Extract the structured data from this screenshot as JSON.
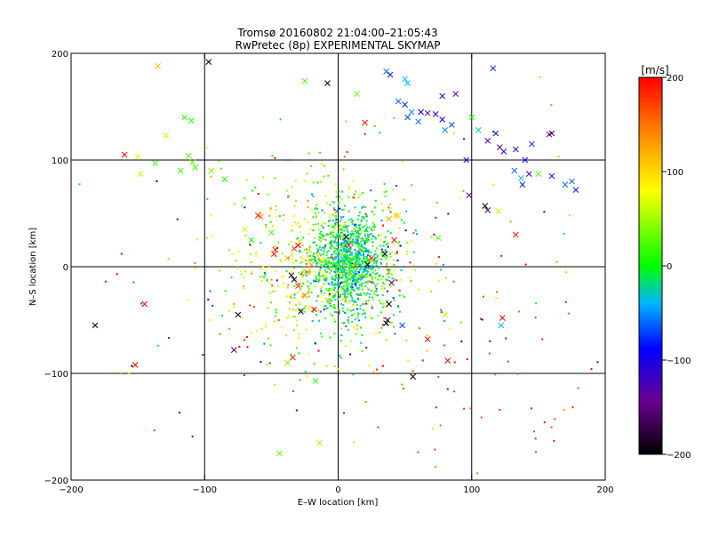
{
  "chart_data": {
    "type": "scatter",
    "title": "Tromsø 20160802 21:04:00–21:05:43",
    "subtitle": "RwPretec (8p) EXPERIMENTAL SKYMAP",
    "xlabel": "E–W location [km]",
    "ylabel": "N–S location [km]",
    "xlim": [
      -200,
      200
    ],
    "ylim": [
      -200,
      200
    ],
    "x_ticks": [
      "−200",
      "−100",
      "0",
      "100",
      "200"
    ],
    "y_ticks": [
      "−200",
      "−100",
      "0",
      "100",
      "200"
    ],
    "grid": true,
    "colorbar": {
      "label": "[m/s]",
      "range": [
        -200,
        200
      ],
      "ticks": [
        "200",
        "100",
        "0",
        "−100",
        "−200"
      ],
      "colormap": "rainbow (black-purple-blue-cyan-green-yellow-red)"
    },
    "crosses": [
      {
        "x": -135,
        "y": 188,
        "v": 110
      },
      {
        "x": -97,
        "y": 192,
        "v": -200
      },
      {
        "x": -25,
        "y": 174,
        "v": 20
      },
      {
        "x": -8,
        "y": 172,
        "v": -200
      },
      {
        "x": 14,
        "y": 162,
        "v": 30
      },
      {
        "x": 20,
        "y": 135,
        "v": 190
      },
      {
        "x": -160,
        "y": 105,
        "v": 200
      },
      {
        "x": -150,
        "y": 103,
        "v": 70
      },
      {
        "x": -148,
        "y": 87,
        "v": 60
      },
      {
        "x": -137,
        "y": 97,
        "v": 20
      },
      {
        "x": -129,
        "y": 123,
        "v": 60
      },
      {
        "x": -118,
        "y": 90,
        "v": 20
      },
      {
        "x": -115,
        "y": 140,
        "v": 20
      },
      {
        "x": -110,
        "y": 137,
        "v": 10
      },
      {
        "x": -112,
        "y": 104,
        "v": 20
      },
      {
        "x": -109,
        "y": 98,
        "v": 30
      },
      {
        "x": -107,
        "y": 93,
        "v": 20
      },
      {
        "x": -95,
        "y": 90,
        "v": 40
      },
      {
        "x": -85,
        "y": 82,
        "v": 10
      },
      {
        "x": 36,
        "y": 183,
        "v": -60
      },
      {
        "x": 39,
        "y": 180,
        "v": -80
      },
      {
        "x": 50,
        "y": 176,
        "v": -40
      },
      {
        "x": 52,
        "y": 172,
        "v": -40
      },
      {
        "x": 45,
        "y": 155,
        "v": -60
      },
      {
        "x": 50,
        "y": 152,
        "v": -80
      },
      {
        "x": 52,
        "y": 140,
        "v": -70
      },
      {
        "x": 55,
        "y": 145,
        "v": -50
      },
      {
        "x": 60,
        "y": 136,
        "v": -60
      },
      {
        "x": 62,
        "y": 145,
        "v": -90
      },
      {
        "x": 67,
        "y": 144,
        "v": -130
      },
      {
        "x": 73,
        "y": 143,
        "v": -110
      },
      {
        "x": 78,
        "y": 138,
        "v": -90
      },
      {
        "x": 80,
        "y": 128,
        "v": -50
      },
      {
        "x": 85,
        "y": 133,
        "v": -70
      },
      {
        "x": 88,
        "y": 162,
        "v": -140
      },
      {
        "x": 78,
        "y": 160,
        "v": -110
      },
      {
        "x": 100,
        "y": 140,
        "v": 10
      },
      {
        "x": 105,
        "y": 128,
        "v": -20
      },
      {
        "x": 116,
        "y": 186,
        "v": -80
      },
      {
        "x": 112,
        "y": 118,
        "v": -120
      },
      {
        "x": 118,
        "y": 125,
        "v": -100
      },
      {
        "x": 121,
        "y": 112,
        "v": -140
      },
      {
        "x": 124,
        "y": 108,
        "v": -110
      },
      {
        "x": 133,
        "y": 110,
        "v": -120
      },
      {
        "x": 140,
        "y": 100,
        "v": -90
      },
      {
        "x": 145,
        "y": 115,
        "v": -70
      },
      {
        "x": 132,
        "y": 90,
        "v": -60
      },
      {
        "x": 137,
        "y": 83,
        "v": -30
      },
      {
        "x": 138,
        "y": 77,
        "v": -80
      },
      {
        "x": 143,
        "y": 87,
        "v": -120
      },
      {
        "x": 150,
        "y": 87,
        "v": 30
      },
      {
        "x": 160,
        "y": 125,
        "v": -160
      },
      {
        "x": 158,
        "y": 124,
        "v": -150
      },
      {
        "x": 160,
        "y": 85,
        "v": -80
      },
      {
        "x": 170,
        "y": 77,
        "v": -60
      },
      {
        "x": 175,
        "y": 80,
        "v": -60
      },
      {
        "x": 178,
        "y": 72,
        "v": -80
      },
      {
        "x": 98,
        "y": 67,
        "v": -130
      },
      {
        "x": 110,
        "y": 57,
        "v": -200
      },
      {
        "x": 120,
        "y": 52,
        "v": 60
      },
      {
        "x": 96,
        "y": 100,
        "v": -120
      },
      {
        "x": 133,
        "y": 30,
        "v": 190
      },
      {
        "x": 112,
        "y": 53,
        "v": -170
      },
      {
        "x": 75,
        "y": 27,
        "v": 30
      },
      {
        "x": -60,
        "y": 48,
        "v": 190
      },
      {
        "x": -58,
        "y": 47,
        "v": 140
      },
      {
        "x": -70,
        "y": 35,
        "v": 60
      },
      {
        "x": -65,
        "y": 25,
        "v": 10
      },
      {
        "x": -50,
        "y": 32,
        "v": 20
      },
      {
        "x": -48,
        "y": 12,
        "v": 190
      },
      {
        "x": -47,
        "y": 16,
        "v": 200
      },
      {
        "x": -33,
        "y": 17,
        "v": 170
      },
      {
        "x": -38,
        "y": 8,
        "v": 120
      },
      {
        "x": -30,
        "y": 20,
        "v": 200
      },
      {
        "x": -30,
        "y": -18,
        "v": 180
      },
      {
        "x": -25,
        "y": -27,
        "v": 140
      },
      {
        "x": -28,
        "y": -42,
        "v": -180
      },
      {
        "x": -18,
        "y": -40,
        "v": 200
      },
      {
        "x": -15,
        "y": 10,
        "v": 100
      },
      {
        "x": -12,
        "y": 5,
        "v": 60
      },
      {
        "x": -20,
        "y": 2,
        "v": 130
      },
      {
        "x": -23,
        "y": -5,
        "v": 150
      },
      {
        "x": -33,
        "y": -12,
        "v": -200
      },
      {
        "x": -35,
        "y": -8,
        "v": -180
      },
      {
        "x": 6,
        "y": 28,
        "v": -200
      },
      {
        "x": 8,
        "y": 20,
        "v": 190
      },
      {
        "x": 15,
        "y": 10,
        "v": -10
      },
      {
        "x": 22,
        "y": 2,
        "v": -200
      },
      {
        "x": 25,
        "y": 8,
        "v": 190
      },
      {
        "x": 35,
        "y": 12,
        "v": -200
      },
      {
        "x": 38,
        "y": -35,
        "v": -200
      },
      {
        "x": 37,
        "y": -50,
        "v": -180
      },
      {
        "x": 36,
        "y": -53,
        "v": -200
      },
      {
        "x": 38,
        "y": 45,
        "v": 120
      },
      {
        "x": 43,
        "y": 48,
        "v": 110
      },
      {
        "x": 45,
        "y": 48,
        "v": 100
      },
      {
        "x": 38,
        "y": -5,
        "v": 20
      },
      {
        "x": 40,
        "y": -15,
        "v": -160
      },
      {
        "x": 42,
        "y": 25,
        "v": 190
      },
      {
        "x": 48,
        "y": -55,
        "v": -70
      },
      {
        "x": 56,
        "y": -103,
        "v": -200
      },
      {
        "x": 67,
        "y": -68,
        "v": 200
      },
      {
        "x": 80,
        "y": -45,
        "v": 60
      },
      {
        "x": 82,
        "y": -88,
        "v": 200
      },
      {
        "x": 123,
        "y": -48,
        "v": 200
      },
      {
        "x": 122,
        "y": -55,
        "v": -40
      },
      {
        "x": -182,
        "y": -55,
        "v": -200
      },
      {
        "x": -145,
        "y": -35,
        "v": 200
      },
      {
        "x": -152,
        "y": -92,
        "v": 200
      },
      {
        "x": -78,
        "y": -78,
        "v": -160
      },
      {
        "x": -75,
        "y": -45,
        "v": -200
      },
      {
        "x": -38,
        "y": -90,
        "v": 40
      },
      {
        "x": -34,
        "y": -85,
        "v": 190
      },
      {
        "x": -17,
        "y": -107,
        "v": 20
      },
      {
        "x": -14,
        "y": -165,
        "v": 50
      },
      {
        "x": -44,
        "y": -175,
        "v": 30
      }
    ]
  }
}
